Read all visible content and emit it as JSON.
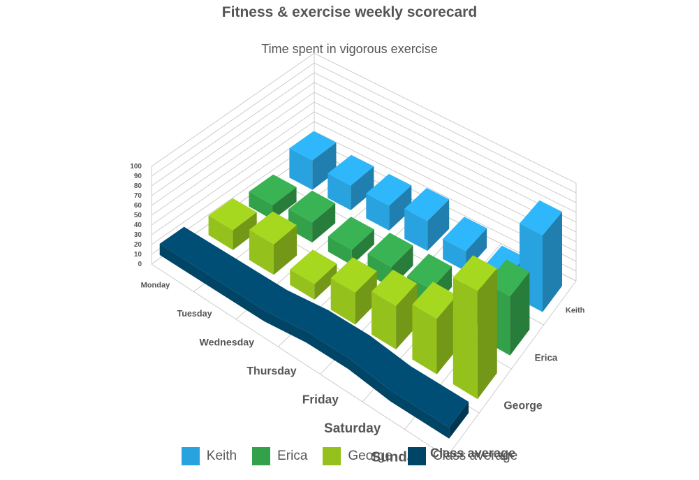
{
  "chart_data": {
    "type": "bar",
    "title": "Fitness & exercise weekly scorecard",
    "subtitle": "Time spent in vigorous exercise",
    "categories": [
      "Monday",
      "Tuesday",
      "Wednesday",
      "Thursday",
      "Friday",
      "Saturday",
      "Sunday"
    ],
    "yticks": [
      0,
      10,
      20,
      30,
      40,
      50,
      60,
      70,
      80,
      90,
      100
    ],
    "ylim": [
      0,
      100
    ],
    "grid": true,
    "legend_position": "bottom",
    "series": [
      {
        "name": "Keith",
        "color": "#29a3e0",
        "values": [
          30,
          25,
          25,
          30,
          20,
          10,
          75
        ]
      },
      {
        "name": "Erica",
        "color": "#33a04a",
        "values": [
          15,
          20,
          15,
          20,
          20,
          15,
          55
        ]
      },
      {
        "name": "George",
        "color": "#94c11c",
        "values": [
          20,
          30,
          15,
          30,
          40,
          50,
          95
        ]
      },
      {
        "name": "Class average",
        "color": "#004466",
        "type": "ribbon",
        "values": [
          15,
          15,
          15,
          20,
          20,
          15,
          15
        ]
      }
    ]
  }
}
